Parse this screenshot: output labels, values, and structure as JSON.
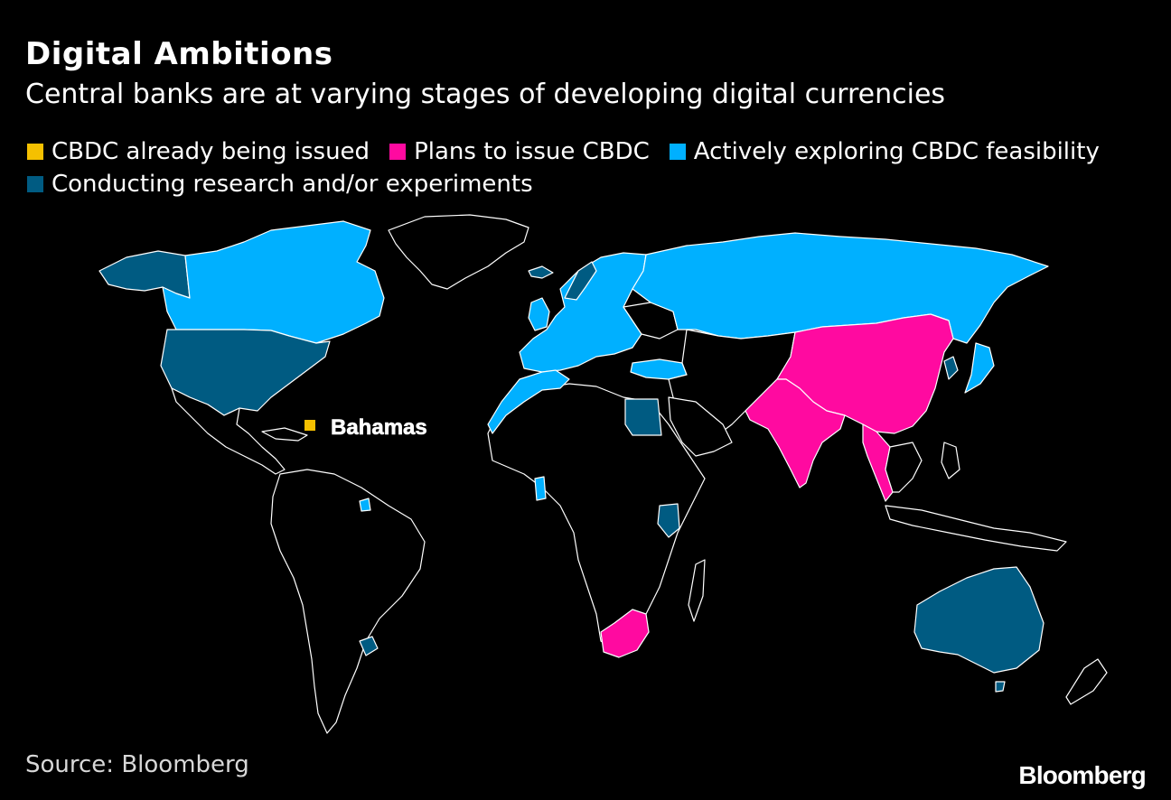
{
  "header": {
    "title": "Digital Ambitions",
    "subtitle": "Central banks are at varying stages of developing digital currencies"
  },
  "legend": {
    "issued": {
      "label": "CBDC already being issued",
      "color": "#f5c000"
    },
    "plans": {
      "label": "Plans to issue CBDC",
      "color": "#ff0aa0"
    },
    "exploring": {
      "label": "Actively exploring CBDC feasibility",
      "color": "#00b0ff"
    },
    "research": {
      "label": "Conducting research and/or experiments",
      "color": "#005b82"
    }
  },
  "map": {
    "annotation": "Bahamas",
    "base_color": "#000000",
    "border_color": "#ffffff"
  },
  "footer": {
    "source": "Source: Bloomberg",
    "brand": "Bloomberg"
  }
}
